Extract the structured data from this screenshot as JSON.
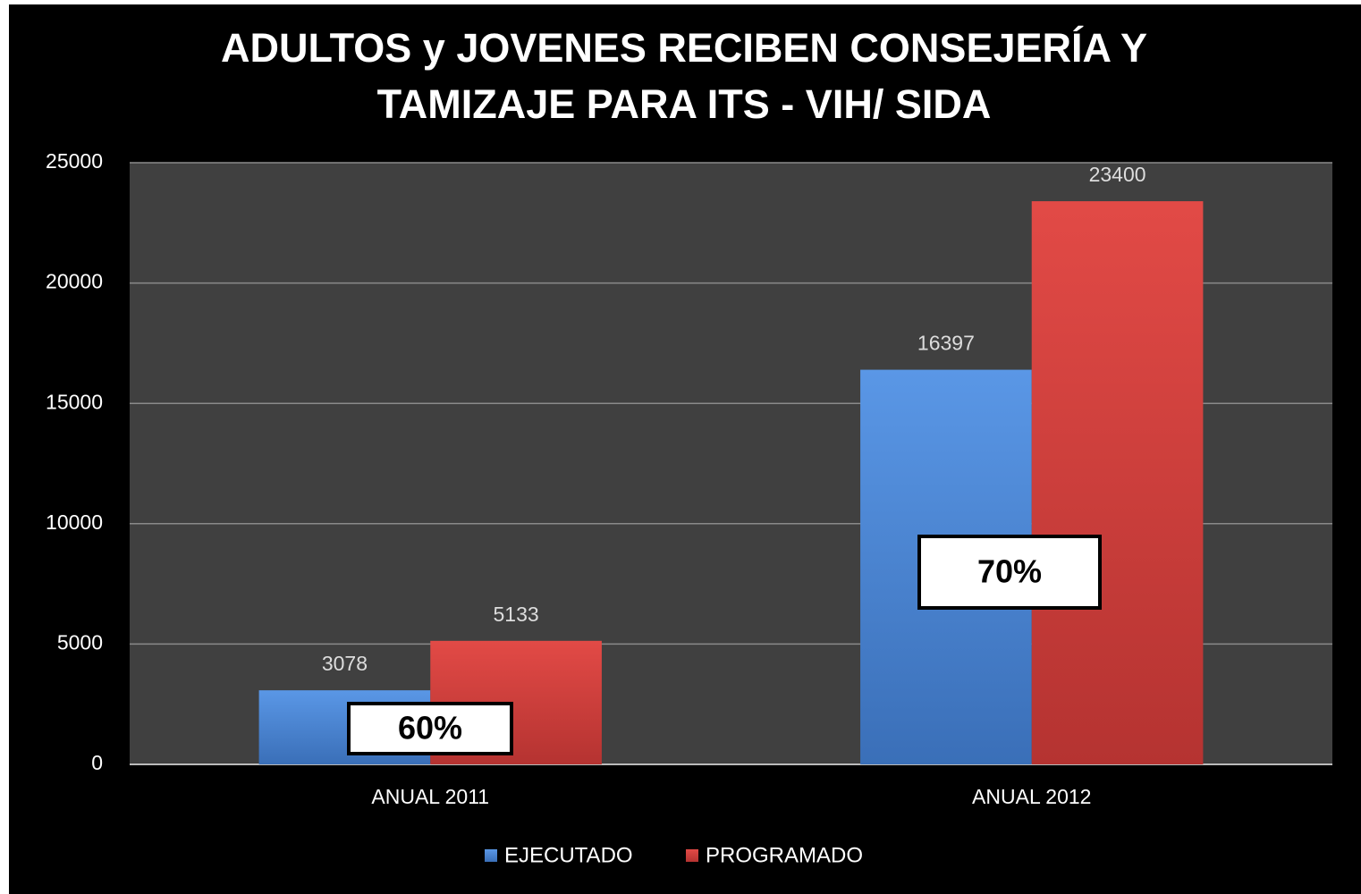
{
  "chart_data": {
    "type": "bar",
    "title": "ADULTOS y JOVENES RECIBEN CONSEJERÍA Y TAMIZAJE PARA ITS - VIH/ SIDA",
    "categories": [
      "ANUAL 2011",
      "ANUAL 2012"
    ],
    "series": [
      {
        "name": "EJECUTADO",
        "color": "#4a86d8",
        "values": [
          3078,
          16397
        ]
      },
      {
        "name": "PROGRAMADO",
        "color": "#d94040",
        "values": [
          5133,
          23400
        ]
      }
    ],
    "ylim": [
      0,
      25000
    ],
    "yticks": [
      0,
      5000,
      10000,
      15000,
      20000,
      25000
    ],
    "grid": true,
    "legend": "bottom",
    "annotations": [
      "60%",
      "70%"
    ]
  }
}
